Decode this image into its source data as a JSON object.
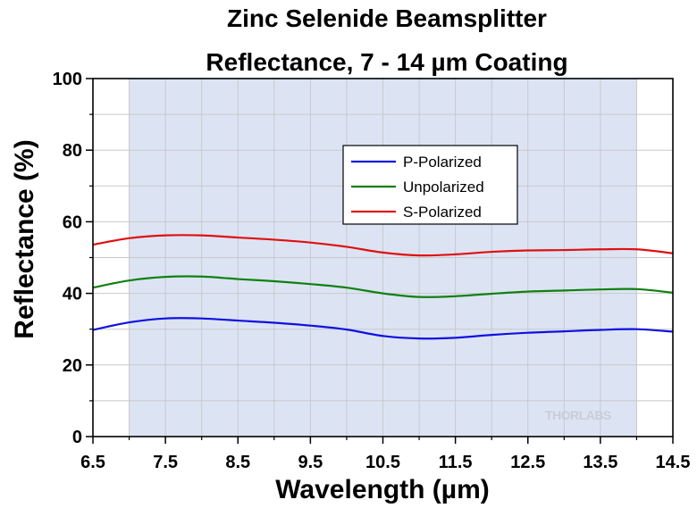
{
  "chart_data": {
    "type": "line",
    "title": [
      "Zinc Selenide Beamsplitter",
      "Reflectance, 7 - 14 µm Coating"
    ],
    "xlabel": "Wavelength (µm)",
    "ylabel": "Reflectance (%)",
    "xlim": [
      6.5,
      14.5
    ],
    "ylim": [
      0,
      100
    ],
    "x_ticks": [
      6.5,
      7.5,
      8.5,
      9.5,
      10.5,
      11.5,
      12.5,
      13.5,
      14.5
    ],
    "x_tick_labels": [
      "6.5",
      "7.5",
      "8.5",
      "9.5",
      "10.5",
      "11.5",
      "12.5",
      "13.5",
      "14.5"
    ],
    "y_ticks": [
      0,
      20,
      40,
      60,
      80,
      100
    ],
    "y_tick_labels": [
      "0",
      "20",
      "40",
      "60",
      "80",
      "100"
    ],
    "grid": true,
    "shaded_region": {
      "x": [
        7,
        14
      ],
      "color": "#dce4f4"
    },
    "legend_position": "upper-center",
    "watermark": "THORLABS",
    "series": [
      {
        "name": "P-Polarized",
        "color": "#1010e0",
        "x": [
          6.5,
          7.0,
          7.5,
          8.0,
          8.5,
          9.0,
          9.5,
          10.0,
          10.5,
          11.0,
          11.5,
          12.0,
          12.5,
          13.0,
          13.5,
          14.0,
          14.5
        ],
        "y": [
          29.8,
          31.9,
          33.0,
          33.0,
          32.4,
          31.8,
          31.0,
          29.9,
          28.1,
          27.4,
          27.6,
          28.4,
          29.0,
          29.4,
          29.8,
          30.0,
          29.3
        ]
      },
      {
        "name": "Unpolarized",
        "color": "#108010",
        "x": [
          6.5,
          7.0,
          7.5,
          8.0,
          8.5,
          9.0,
          9.5,
          10.0,
          10.5,
          11.0,
          11.5,
          12.0,
          12.5,
          13.0,
          13.5,
          14.0,
          14.5
        ],
        "y": [
          41.6,
          43.6,
          44.6,
          44.7,
          44.0,
          43.4,
          42.6,
          41.6,
          40.0,
          39.0,
          39.2,
          39.9,
          40.5,
          40.8,
          41.1,
          41.2,
          40.2
        ]
      },
      {
        "name": "S-Polarized",
        "color": "#e01010",
        "x": [
          6.5,
          7.0,
          7.5,
          8.0,
          8.5,
          9.0,
          9.5,
          10.0,
          10.5,
          11.0,
          11.5,
          12.0,
          12.5,
          13.0,
          13.5,
          14.0,
          14.5
        ],
        "y": [
          53.6,
          55.4,
          56.2,
          56.2,
          55.6,
          55.0,
          54.2,
          53.0,
          51.4,
          50.6,
          50.9,
          51.6,
          52.0,
          52.1,
          52.3,
          52.3,
          51.2
        ]
      }
    ]
  }
}
